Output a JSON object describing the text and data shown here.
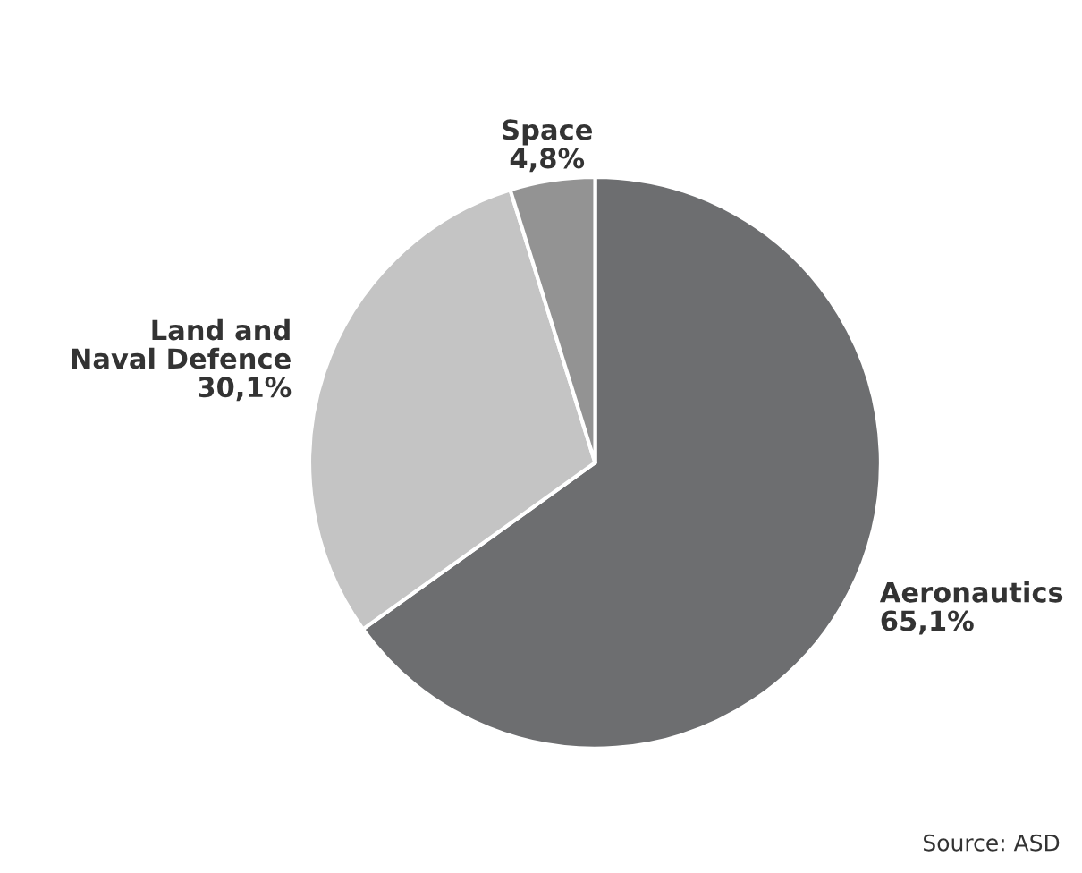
{
  "chart_data": {
    "type": "pie",
    "categories": [
      "Aeronautics",
      "Land and\nNaval Defence",
      "Space"
    ],
    "values": [
      65.1,
      30.1,
      4.8
    ],
    "value_labels": [
      "65,1%",
      "30,1%",
      "4,8%"
    ],
    "colors": [
      "#6d6e70",
      "#c4c4c4",
      "#939393"
    ],
    "annotations": [
      "Source: ASD"
    ],
    "legend": false
  }
}
